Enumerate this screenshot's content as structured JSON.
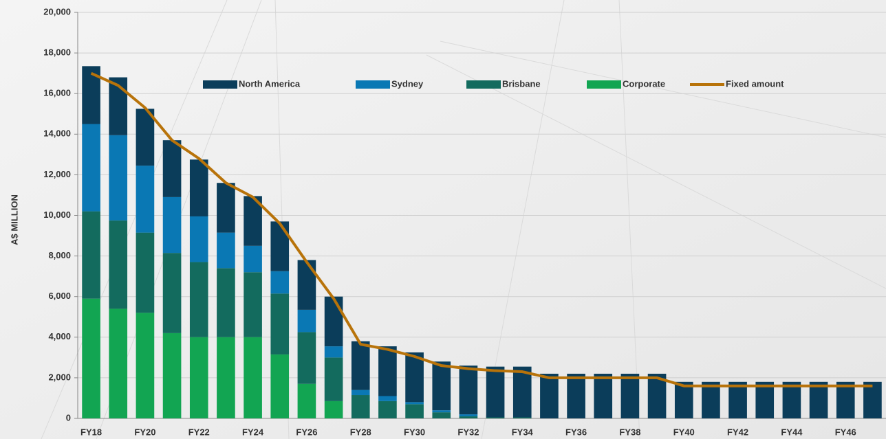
{
  "chart_data": {
    "type": "bar",
    "stacked": true,
    "y_label": "A$ MILLION",
    "categories": [
      "FY18",
      null,
      "FY20",
      null,
      "FY22",
      null,
      "FY24",
      null,
      "FY26",
      null,
      "FY28",
      null,
      "FY30",
      null,
      "FY32",
      null,
      "FY34",
      null,
      "FY36",
      null,
      "FY38",
      null,
      "FY40",
      null,
      "FY42",
      null,
      "FY44",
      null,
      "FY46",
      null
    ],
    "series": [
      {
        "name": "North America",
        "color": "#0b3d5a",
        "values": [
          2850,
          2850,
          2800,
          2800,
          2800,
          2450,
          2450,
          2450,
          2450,
          2450,
          2400,
          2450,
          2450,
          2400,
          2400,
          2500,
          2500,
          2200,
          2200,
          2200,
          2200,
          2200,
          1800,
          1800,
          1800,
          1800,
          1800,
          1800,
          1800,
          1800
        ]
      },
      {
        "name": "Sydney",
        "color": "#0a78b4",
        "values": [
          4300,
          4200,
          3300,
          2750,
          2250,
          1750,
          1300,
          1100,
          1100,
          550,
          250,
          250,
          100,
          100,
          100,
          0,
          0,
          0,
          0,
          0,
          0,
          0,
          0,
          0,
          0,
          0,
          0,
          0,
          0,
          0
        ]
      },
      {
        "name": "Brisbane",
        "color": "#136b5e",
        "values": [
          4300,
          4350,
          3950,
          3950,
          3700,
          3400,
          3200,
          3000,
          2550,
          2150,
          1150,
          850,
          700,
          300,
          100,
          50,
          50,
          0,
          0,
          0,
          0,
          0,
          0,
          0,
          0,
          0,
          0,
          0,
          0,
          0
        ]
      },
      {
        "name": "Corporate",
        "color": "#12a552",
        "values": [
          5900,
          5400,
          5200,
          4200,
          4000,
          4000,
          4000,
          3150,
          1700,
          850,
          0,
          0,
          0,
          0,
          0,
          0,
          0,
          0,
          0,
          0,
          0,
          0,
          0,
          0,
          0,
          0,
          0,
          0,
          0,
          0
        ]
      },
      {
        "name": "Fixed amount",
        "type": "line",
        "color": "#b8730a",
        "values": [
          17000,
          16400,
          15300,
          13700,
          12800,
          11600,
          10900,
          9600,
          7700,
          5900,
          3650,
          3400,
          3050,
          2600,
          2450,
          2350,
          2300,
          2000,
          2000,
          2000,
          2000,
          2000,
          1600,
          1600,
          1600,
          1600,
          1600,
          1600,
          1600,
          1600
        ]
      }
    ],
    "ylim": [
      0,
      20000
    ],
    "yticks": [
      0,
      {
        "value": 2000,
        "label": "2,000"
      },
      {
        "value": 4000,
        "label": "4,000"
      },
      {
        "value": 6000,
        "label": "6,000"
      },
      {
        "value": 8000,
        "label": "8,000"
      },
      {
        "value": 10000,
        "label": "10,000"
      },
      {
        "value": 12000,
        "label": "12,000"
      },
      {
        "value": 14000,
        "label": "14,000"
      },
      {
        "value": 16000,
        "label": "16,000"
      },
      {
        "value": 18000,
        "label": "18,000"
      },
      {
        "value": 20000,
        "label": "20,000"
      }
    ],
    "grid": true,
    "legend": "top"
  }
}
